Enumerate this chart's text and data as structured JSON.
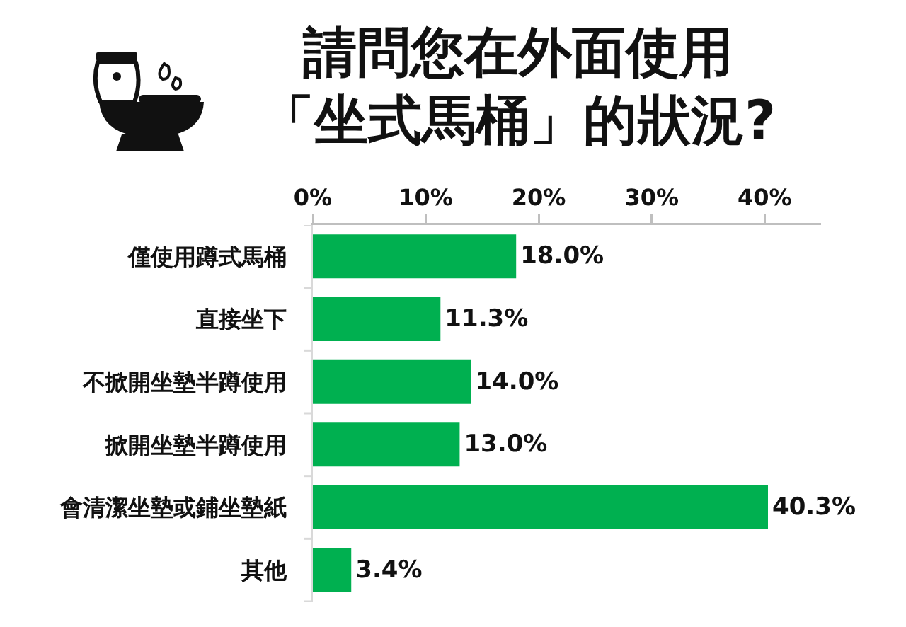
{
  "chart_data": {
    "type": "bar",
    "orientation": "horizontal",
    "title": "請問您在外面使用「坐式馬桶」的狀況?",
    "categories": [
      "僅使用蹲式馬桶",
      "直接坐下",
      "不掀開坐墊半蹲使用",
      "掀開坐墊半蹲使用",
      "會清潔坐墊或鋪坐墊紙",
      "其他"
    ],
    "values": [
      18.0,
      11.3,
      14.0,
      13.0,
      40.3,
      3.4
    ],
    "value_labels": [
      "18.0%",
      "11.3%",
      "14.0%",
      "13.0%",
      "40.3%",
      "3.4%"
    ],
    "color": "#00b050",
    "xlim": [
      0,
      45
    ],
    "xticks": [
      {
        "value": 0,
        "label": "0%"
      },
      {
        "value": 10,
        "label": "10%"
      },
      {
        "value": 20,
        "label": "20%"
      },
      {
        "value": 30,
        "label": "30%"
      },
      {
        "value": 40,
        "label": "40%"
      }
    ],
    "grid": false
  }
}
